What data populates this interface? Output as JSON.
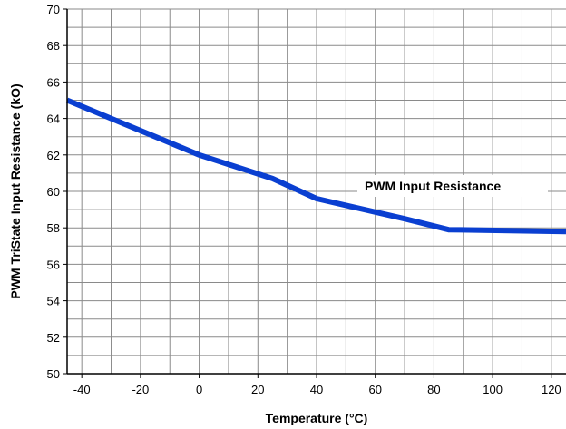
{
  "chart_data": {
    "type": "line",
    "title": "",
    "xlabel": "Temperature (°C)",
    "ylabel": "PWM TriState Input Resistance (kO)",
    "xlim": [
      -45,
      125
    ],
    "ylim": [
      50,
      70
    ],
    "xticks": [
      -40,
      -20,
      0,
      20,
      40,
      60,
      80,
      100,
      120
    ],
    "yticks": [
      50,
      52,
      54,
      56,
      58,
      60,
      62,
      64,
      66,
      68,
      70
    ],
    "grid": true,
    "legend": "none",
    "series": [
      {
        "x": [
          -45,
          -30,
          -15,
          0,
          25,
          40,
          70,
          85,
          125
        ],
        "y": [
          65.0,
          64.0,
          63.0,
          62.0,
          60.7,
          59.6,
          58.5,
          57.9,
          57.8
        ],
        "color": "#0a3fd1"
      }
    ],
    "annotations": [
      {
        "text": "PWM Input Resistance"
      }
    ]
  }
}
